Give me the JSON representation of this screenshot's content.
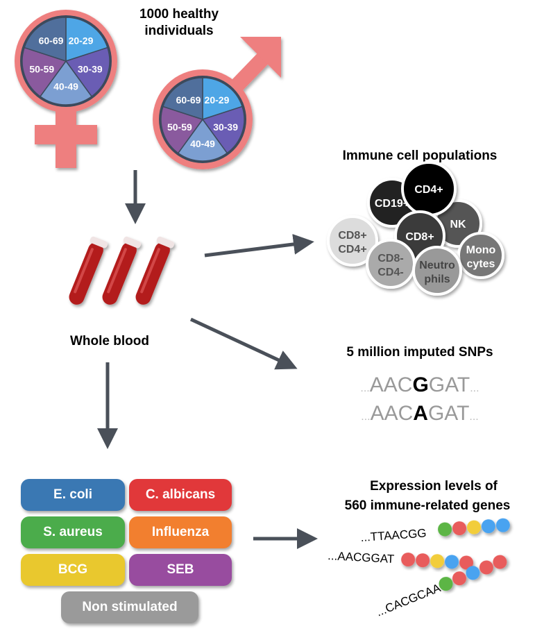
{
  "cohort": {
    "title_line1": "1000 healthy",
    "title_line2": "individuals",
    "age_groups": [
      "20-29",
      "30-39",
      "40-49",
      "50-59",
      "60-69"
    ],
    "age_colors": [
      "#4ea6e6",
      "#6a5db4",
      "#7c9fd2",
      "#8a5a9e",
      "#506f9c"
    ],
    "symbol_color": "#ee7f7f"
  },
  "blood": {
    "label": "Whole blood"
  },
  "immune_cells": {
    "title": "Immune cell populations",
    "cells": [
      {
        "line1": "CD8+",
        "line2": "CD4+",
        "fill": "#dcdcdc",
        "text": "#555555"
      },
      {
        "line1": "CD19+",
        "line2": "",
        "fill": "#222222",
        "text": "#ffffff"
      },
      {
        "line1": "NK",
        "line2": "",
        "fill": "#555555",
        "text": "#ffffff"
      },
      {
        "line1": "CD4+",
        "line2": "",
        "fill": "#000000",
        "text": "#ffffff"
      },
      {
        "line1": "CD8+",
        "line2": "",
        "fill": "#3a3a3a",
        "text": "#ffffff"
      },
      {
        "line1": "CD8-",
        "line2": "CD4-",
        "fill": "#aaaaaa",
        "text": "#555555"
      },
      {
        "line1": "Mono",
        "line2": "cytes",
        "fill": "#777777",
        "text": "#ffffff"
      },
      {
        "line1": "Neutro",
        "line2": "phils",
        "fill": "#999999",
        "text": "#444444"
      }
    ]
  },
  "snps": {
    "title": "5 million imputed SNPs",
    "seq1": {
      "prefix": "...",
      "left": "AAC",
      "variant": "G",
      "right": "GAT",
      "suffix": "..."
    },
    "seq2": {
      "prefix": "...",
      "left": "AAC",
      "variant": "A",
      "right": "GAT",
      "suffix": "..."
    }
  },
  "expression": {
    "title_line1": "Expression levels of",
    "title_line2": "560 immune-related genes",
    "reads": [
      "...TTAACGG",
      "...AACGGAT",
      "...CACGCAA"
    ]
  },
  "stimuli": [
    {
      "label": "E. coli",
      "color": "#3a78b3"
    },
    {
      "label": "C. albicans",
      "color": "#e1383a"
    },
    {
      "label": "S. aureus",
      "color": "#4bac4b"
    },
    {
      "label": "Influenza",
      "color": "#f27f2f"
    },
    {
      "label": "BCG",
      "color": "#e9c82e"
    },
    {
      "label": "SEB",
      "color": "#984c9f"
    },
    {
      "label": "Non stimulated",
      "color": "#9a9a9a"
    }
  ]
}
